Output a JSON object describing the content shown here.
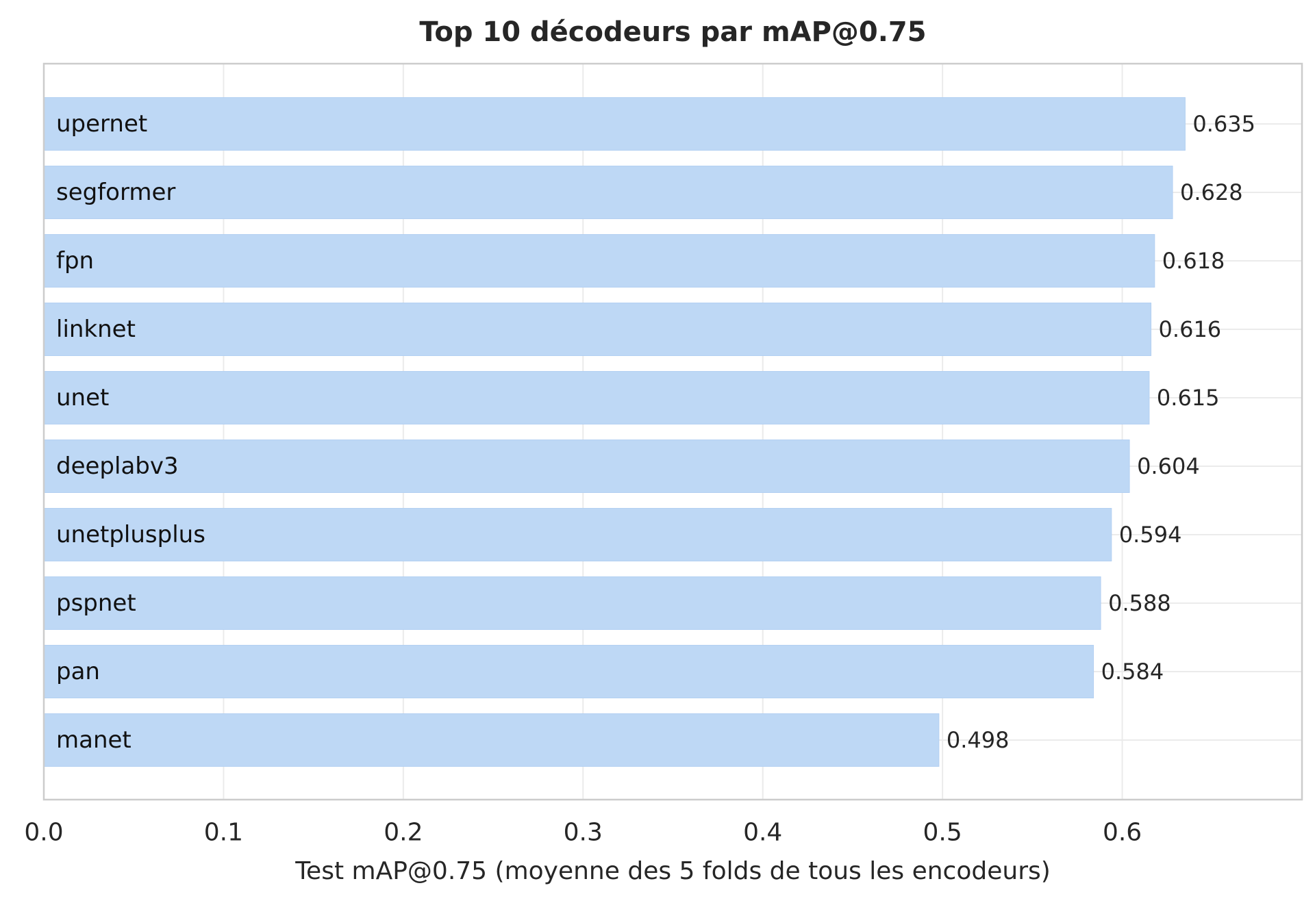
{
  "chart_data": {
    "type": "bar",
    "orientation": "horizontal",
    "title": "Top 10 décodeurs par mAP@0.75",
    "xlabel": "Test mAP@0.75 (moyenne des 5 folds de tous les encodeurs)",
    "ylabel": "",
    "categories": [
      "upernet",
      "segformer",
      "fpn",
      "linknet",
      "unet",
      "deeplabv3",
      "unetplusplus",
      "pspnet",
      "pan",
      "manet"
    ],
    "values": [
      0.635,
      0.628,
      0.618,
      0.616,
      0.615,
      0.604,
      0.594,
      0.588,
      0.584,
      0.498
    ],
    "value_labels": [
      "0.635",
      "0.628",
      "0.618",
      "0.616",
      "0.615",
      "0.604",
      "0.594",
      "0.588",
      "0.584",
      "0.498"
    ],
    "xlim": [
      0,
      0.7
    ],
    "xticks": [
      0.0,
      0.1,
      0.2,
      0.3,
      0.4,
      0.5,
      0.6
    ],
    "xtick_labels": [
      "0.0",
      "0.1",
      "0.2",
      "0.3",
      "0.4",
      "0.5",
      "0.6"
    ],
    "grid": true,
    "legend": "none",
    "colors": {
      "bar": "#bed8f5",
      "bar_edge": "#b3d0f2",
      "grid": "#ebebeb",
      "frame": "#cccccc",
      "text": "#262626",
      "category_text": "#111111"
    }
  }
}
